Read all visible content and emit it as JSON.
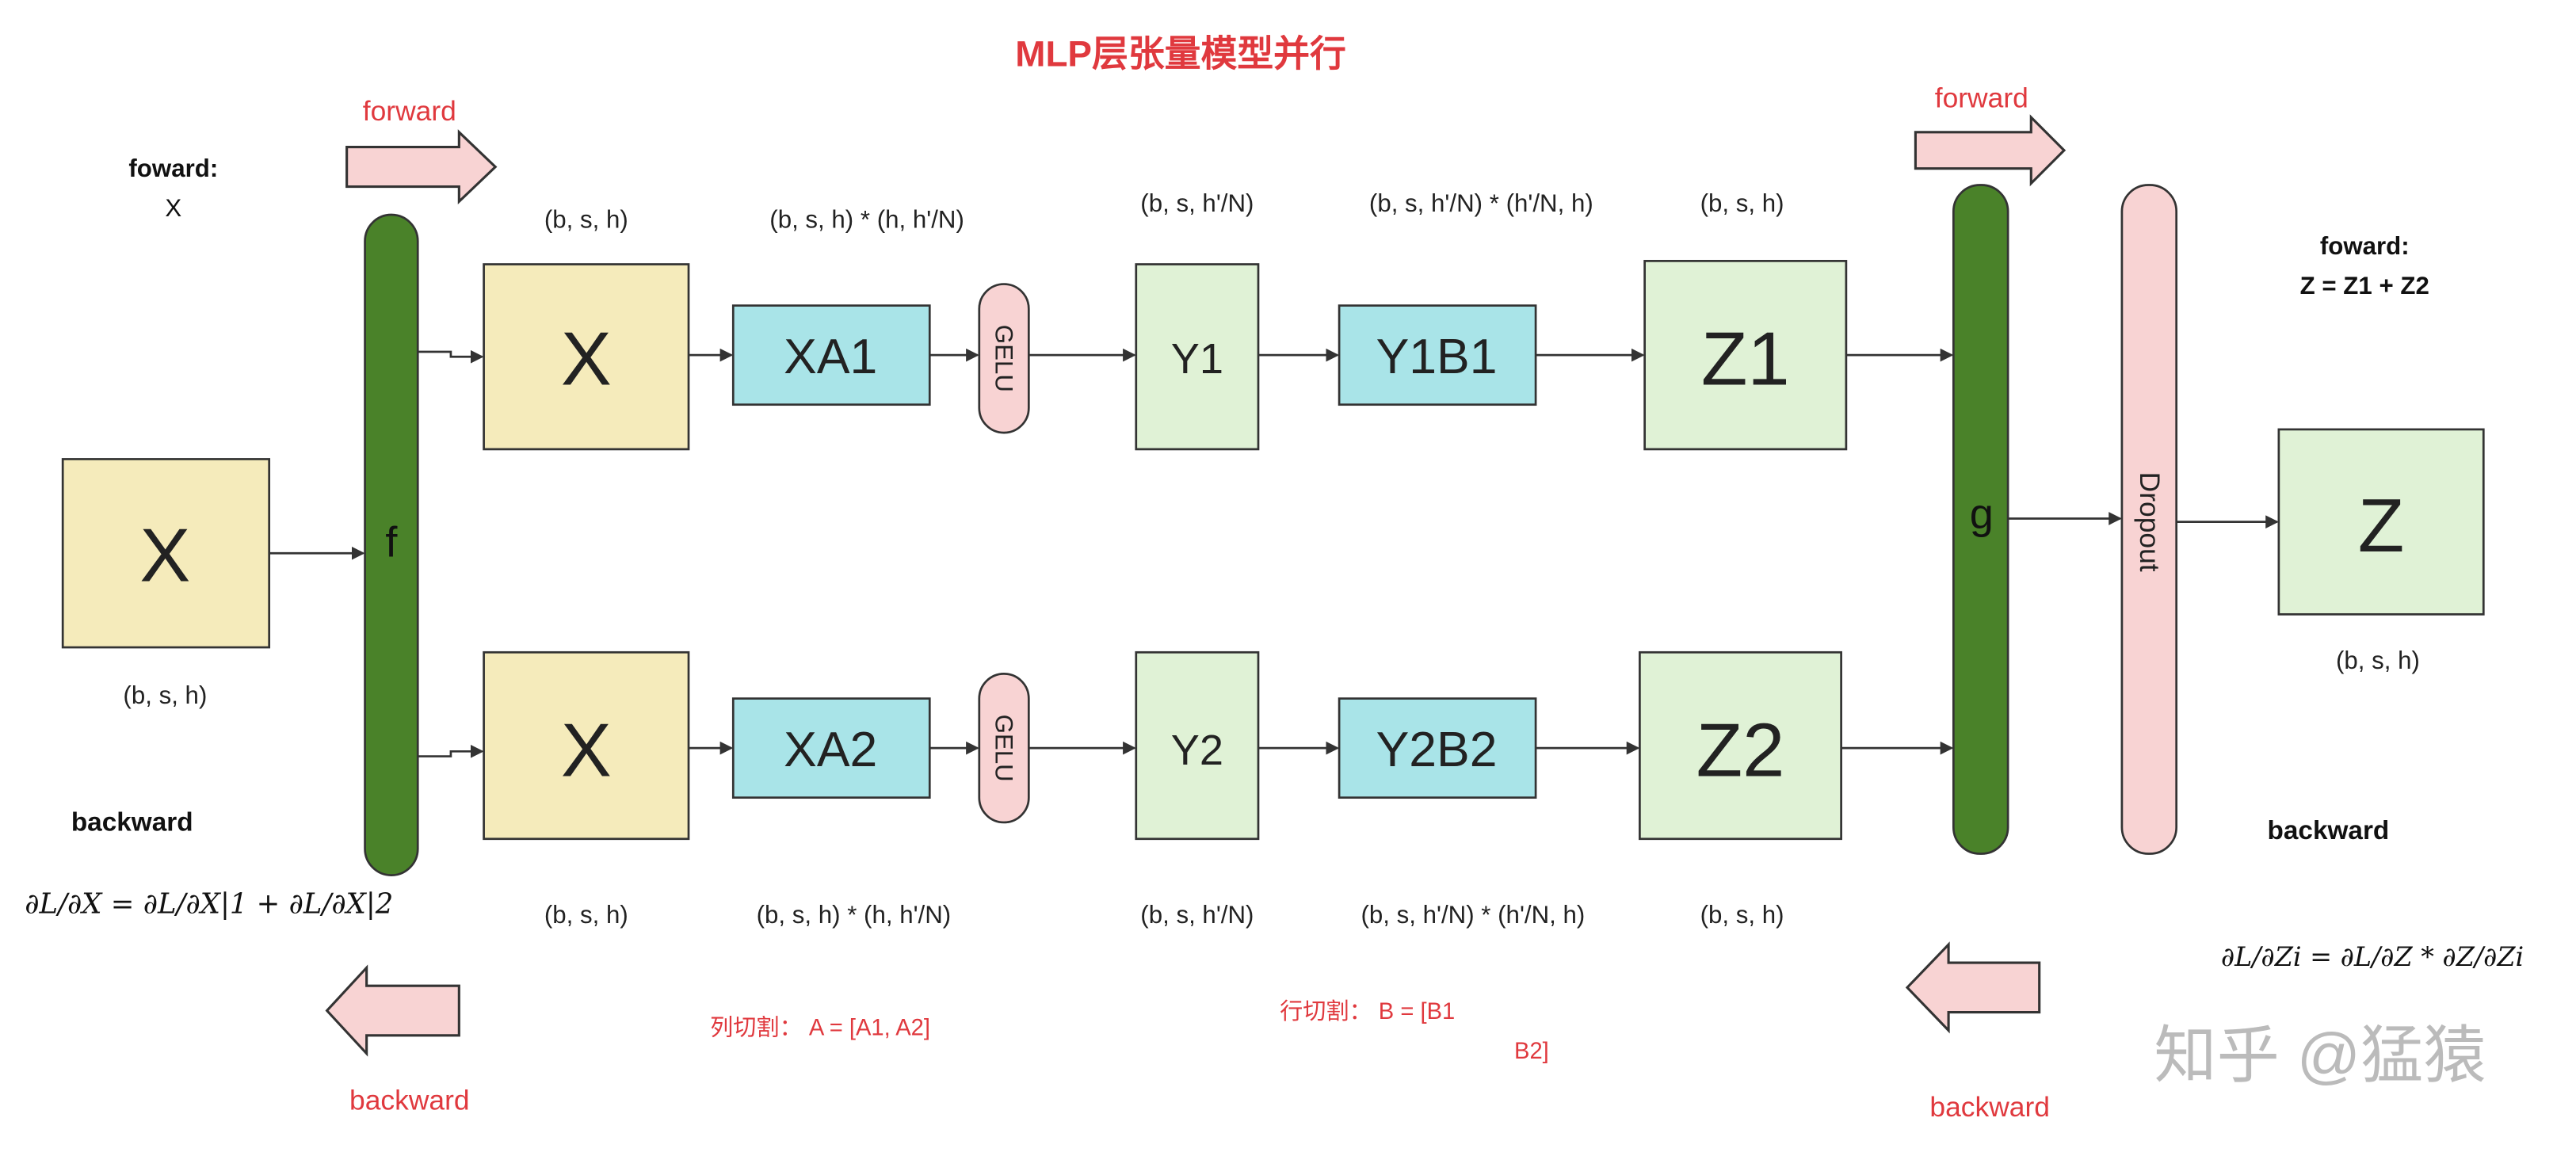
{
  "title": "MLP层张量模型并行",
  "colors": {
    "green_bar": "#4a8229",
    "yellow_box": "#f5ebbb",
    "cyan_box": "#a9e4e8",
    "light_green_box": "#e0f2d6",
    "pink": "#f8d3d3",
    "red_text": "#e0393e"
  },
  "left": {
    "forward_label": "forward",
    "forward_note_1": "foward:",
    "forward_note_2": "X",
    "input_box": "X",
    "input_dim": "(b, s, h)",
    "backward_note": "backward",
    "backward_formula": "∂L/∂X = ∂L/∂X|1 + ∂L/∂X|2",
    "backward_label": "backward",
    "f_label": "f"
  },
  "top_row": {
    "boxes": [
      "X",
      "XA1",
      "GELU",
      "Y1",
      "Y1B1",
      "Z1"
    ],
    "dims": [
      "(b, s, h)",
      "(b, s, h) * (h, h'/N)",
      "(b, s,  h'/N)",
      "(b, s, h'/N) * (h'/N, h)",
      "(b, s, h)"
    ]
  },
  "bottom_row": {
    "boxes": [
      "X",
      "XA2",
      "GELU",
      "Y2",
      "Y2B2",
      "Z2"
    ],
    "dims": [
      "(b, s, h)",
      "(b, s, h) * (h, h'/N)",
      "(b, s,  h'/N)",
      "(b, s, h'/N) * (h'/N, h)",
      "(b, s, h)"
    ]
  },
  "notes": {
    "column_split": "列切割：  A = [A1, A2]",
    "row_split_1": "行切割：  B = [B1",
    "row_split_2": "B2]"
  },
  "right": {
    "g_label": "g",
    "dropout_label": "Dropout",
    "forward_label": "forward",
    "forward_note_1": "foward:",
    "forward_note_2": "Z = Z1 + Z2",
    "output_box": "Z",
    "output_dim": "(b, s, h)",
    "backward_note": "backward",
    "backward_formula": "∂L/∂Zi = ∂L/∂Z * ∂Z/∂Zi",
    "backward_label": "backward"
  },
  "watermark": "知乎 @猛猿"
}
